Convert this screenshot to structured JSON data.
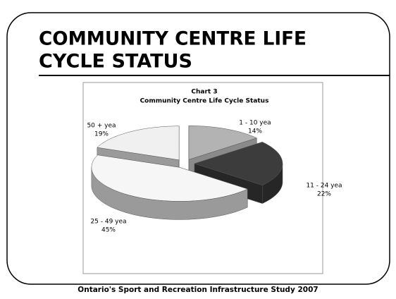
{
  "slide": {
    "title": [
      "COMMUNITY CENTRE LIFE",
      "CYCLE STATUS"
    ],
    "footer": "Ontario's Sport and Recreation Infrastructure Study 2007"
  },
  "chart_data": {
    "type": "pie3d",
    "title": "Chart 3",
    "subtitle": "Community Centre Life Cycle Status",
    "categories": [
      "1 - 10 yea",
      "11 - 24 yea",
      "25 - 49 yea",
      "50 + yea"
    ],
    "values": [
      14,
      22,
      45,
      19
    ],
    "value_labels": [
      "14%",
      "22%",
      "45%",
      "19%"
    ],
    "colors": [
      "#b3b3b3",
      "#3c3c3c",
      "#f6f6f6",
      "#f0f0f0"
    ],
    "side_colors": [
      "#8a8a8a",
      "#262626",
      "#9a9a9a",
      "#9a9a9a"
    ]
  }
}
